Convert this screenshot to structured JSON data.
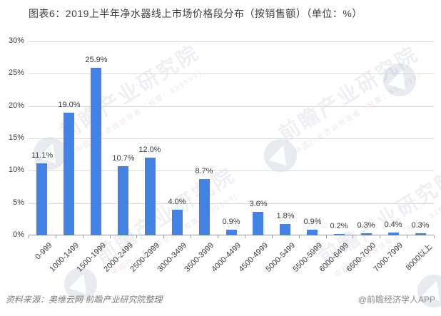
{
  "title": "图表6：2019上半年净水器线上市场价格段分布（按销售额）（单位：%）",
  "chart_data": {
    "type": "bar",
    "title": "2019上半年净水器线上市场价格段分布（按销售额）",
    "unit": "%",
    "categories": [
      "0-999",
      "1000-1499",
      "1500-1999",
      "2000-2499",
      "2500-2999",
      "3000-3499",
      "3500-3999",
      "4000-4499",
      "4500-4999",
      "5000-5499",
      "5500-5999",
      "6000-6499",
      "6500-7000",
      "7000-7999",
      "8000以上"
    ],
    "values": [
      11.1,
      19.0,
      25.9,
      10.7,
      12.0,
      4.0,
      8.7,
      0.9,
      3.6,
      1.8,
      0.9,
      0.2,
      0.3,
      0.4,
      0.3
    ],
    "value_labels": [
      "11.1%",
      "19.0%",
      "25.9%",
      "10.7%",
      "12.0%",
      "4.0%",
      "8.7%",
      "0.9%",
      "3.6%",
      "1.8%",
      "0.9%",
      "0.2%",
      "0.3%",
      "0.4%",
      "0.3%"
    ],
    "xlabel": "",
    "ylabel": "",
    "ylim": [
      0,
      30
    ],
    "yticks": [
      0,
      5,
      10,
      15,
      20,
      25,
      30
    ],
    "ytick_labels": [
      "0%",
      "5%",
      "10%",
      "15%",
      "20%",
      "25%",
      "30%"
    ],
    "grid": true,
    "legend_position": "none",
    "bar_color": "#4182E4",
    "gridline_color": "#dcdcdc",
    "axis_color": "#9a9a9a"
  },
  "watermark": {
    "brand": "前瞻产业研究院",
    "tagline": "中国产业咨询领导者（股票：839599）",
    "logo_icon": "qianzhan-bird-logo-icon"
  },
  "footer": {
    "source": "资料来源：奥维云网 前瞻产业研究院整理",
    "credit": "@前瞻经济学人APP"
  }
}
